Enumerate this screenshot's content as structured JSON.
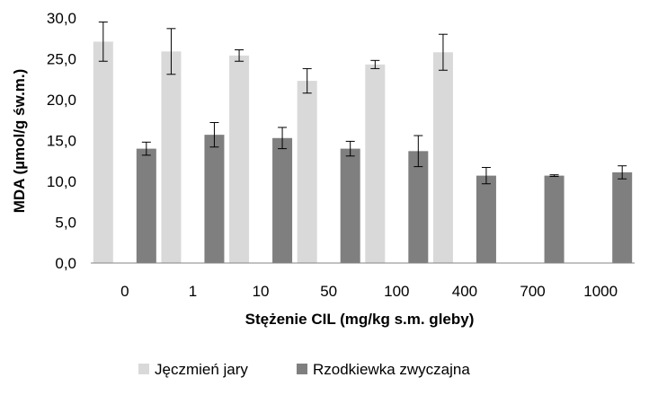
{
  "chart_data": {
    "type": "bar",
    "categories": [
      "0",
      "1",
      "10",
      "50",
      "100",
      "400",
      "700",
      "1000"
    ],
    "series": [
      {
        "name": "Jęczmień jary",
        "color": "#d9d9d9",
        "values": [
          27.1,
          25.9,
          25.4,
          22.3,
          24.3,
          25.8,
          null,
          null
        ],
        "errors": [
          2.4,
          2.8,
          0.7,
          1.5,
          0.5,
          2.2,
          null,
          null
        ]
      },
      {
        "name": "Rzodkiewka zwyczajna",
        "color": "#7f7f7f",
        "values": [
          14.0,
          15.7,
          15.3,
          14.0,
          13.7,
          10.7,
          10.7,
          11.1
        ],
        "errors": [
          0.8,
          1.5,
          1.3,
          0.9,
          1.9,
          1.0,
          0.1,
          0.8
        ]
      }
    ],
    "yticks": [
      "0,0",
      "5,0",
      "10,0",
      "15,0",
      "20,0",
      "25,0",
      "30,0"
    ],
    "ylim": [
      0,
      30
    ],
    "xlabel": "Stężenie CIL (mg/kg s.m. gleby)",
    "ylabel": "MDA (µmol/g św.m.)",
    "grid": false,
    "legend_position": "bottom"
  }
}
